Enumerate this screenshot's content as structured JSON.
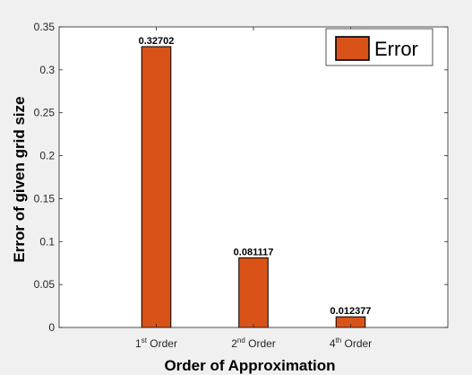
{
  "chart_data": {
    "type": "bar",
    "categories": [
      {
        "base": "1",
        "sup": "st",
        "suffix": " Order"
      },
      {
        "base": "2",
        "sup": "nd",
        "suffix": " Order"
      },
      {
        "base": "4",
        "sup": "th",
        "suffix": " Order"
      }
    ],
    "series": [
      {
        "name": "Error",
        "values": [
          0.32702,
          0.081117,
          0.012377
        ],
        "color": "#d95319"
      }
    ],
    "data_labels": [
      "0.32702",
      "0.081117",
      "0.012377"
    ],
    "title": "",
    "xlabel": "Order of Approximation",
    "ylabel": "Error of given grid size",
    "ylim": [
      0,
      0.35
    ],
    "yticks": [
      0,
      0.05,
      0.1,
      0.15,
      0.2,
      0.25,
      0.3,
      0.35
    ],
    "ytick_labels": [
      "0",
      "0.05",
      "0.1",
      "0.15",
      "0.2",
      "0.25",
      "0.3",
      "0.35"
    ],
    "grid": false,
    "legend": {
      "position": "top-right",
      "entries": [
        "Error"
      ]
    }
  },
  "colors": {
    "background": "#f0f0f0",
    "axes_background": "#ffffff",
    "bar_fill": "#d95319",
    "bar_edge": "#000000"
  }
}
